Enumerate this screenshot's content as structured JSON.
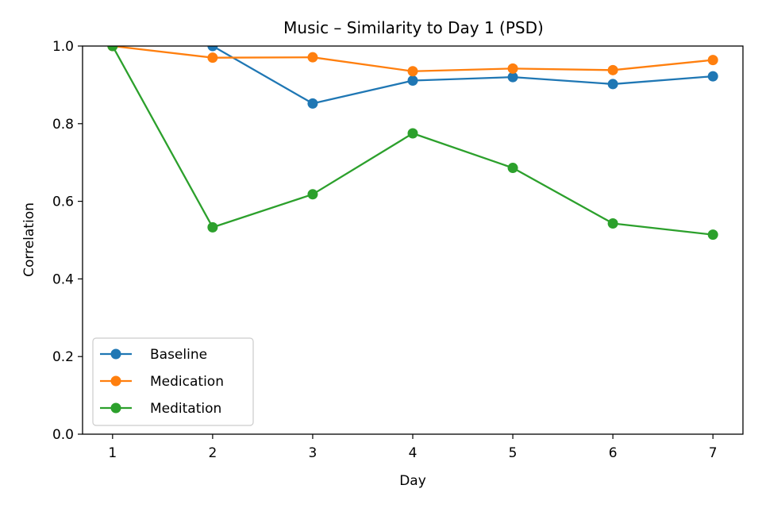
{
  "chart_data": {
    "type": "line",
    "title": "Music – Similarity to Day 1 (PSD)",
    "xlabel": "Day",
    "ylabel": "Correlation",
    "xlim": [
      0.7,
      7.3
    ],
    "ylim": [
      0.0,
      1.0
    ],
    "xticks": [
      1,
      2,
      3,
      4,
      5,
      6,
      7
    ],
    "xtick_labels": [
      "1",
      "2",
      "3",
      "4",
      "5",
      "6",
      "7"
    ],
    "yticks": [
      0.0,
      0.2,
      0.4,
      0.6,
      0.8,
      1.0
    ],
    "ytick_labels": [
      "0.0",
      "0.2",
      "0.4",
      "0.6",
      "0.8",
      "1.0"
    ],
    "grid": false,
    "legend_position": "lower-left",
    "series": [
      {
        "name": "Baseline",
        "color": "#1f77b4",
        "x": [
          2,
          3,
          4,
          5,
          6,
          7
        ],
        "y": [
          1.0,
          0.852,
          0.911,
          0.92,
          0.902,
          0.922
        ]
      },
      {
        "name": "Medication",
        "color": "#ff7f0e",
        "x": [
          1,
          2,
          3,
          4,
          5,
          6,
          7
        ],
        "y": [
          1.0,
          0.97,
          0.971,
          0.935,
          0.942,
          0.938,
          0.964
        ]
      },
      {
        "name": "Meditation",
        "color": "#2ca02c",
        "x": [
          1,
          2,
          3,
          4,
          5,
          6,
          7
        ],
        "y": [
          1.0,
          0.533,
          0.618,
          0.775,
          0.686,
          0.543,
          0.514
        ]
      }
    ]
  }
}
